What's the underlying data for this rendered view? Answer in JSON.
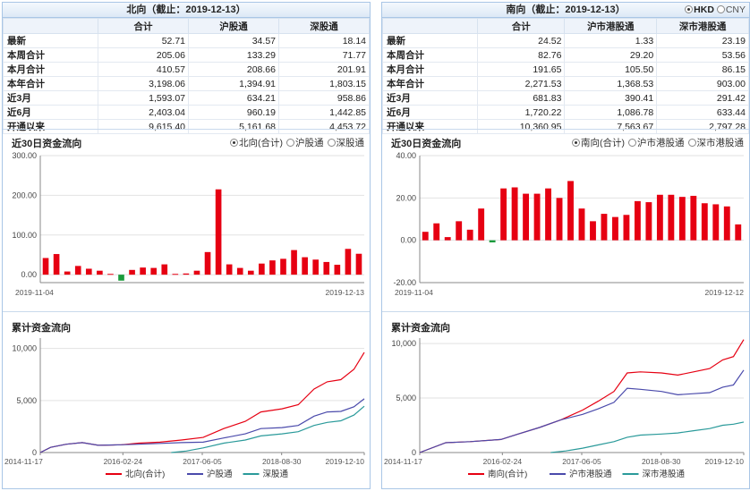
{
  "colors": {
    "red": "#e60012",
    "green": "#1a9b3c",
    "blue": "#4a4aab",
    "teal": "#2a9a9a",
    "grid": "#e2e2e2"
  },
  "left": {
    "title": "北向（截止：2019-12-13）",
    "columns": [
      "合计",
      "沪股通",
      "深股通"
    ],
    "rows": [
      {
        "label": "最新",
        "values": [
          "52.71",
          "34.57",
          "18.14"
        ]
      },
      {
        "label": "本周合计",
        "values": [
          "205.06",
          "133.29",
          "71.77"
        ]
      },
      {
        "label": "本月合计",
        "values": [
          "410.57",
          "208.66",
          "201.91"
        ]
      },
      {
        "label": "本年合计",
        "values": [
          "3,198.06",
          "1,394.91",
          "1,803.15"
        ]
      },
      {
        "label": "近3月",
        "values": [
          "1,593.07",
          "634.21",
          "958.86"
        ]
      },
      {
        "label": "近6月",
        "values": [
          "2,403.04",
          "960.19",
          "1,442.85"
        ]
      },
      {
        "label": "开通以来",
        "values": [
          "9,615.40",
          "5,161.68",
          "4,453.72"
        ]
      }
    ],
    "flow_title": "近30日资金流向",
    "flow_options": [
      "北向(合计)",
      "沪股通",
      "深股通"
    ],
    "flow_selected": 0,
    "cum_title": "累计资金流向"
  },
  "right": {
    "title": "南向（截止：2019-12-13）",
    "currency": [
      "HKD",
      "CNY"
    ],
    "currency_selected": 0,
    "columns": [
      "合计",
      "沪市港股通",
      "深市港股通"
    ],
    "rows": [
      {
        "label": "最新",
        "values": [
          "24.52",
          "1.33",
          "23.19"
        ]
      },
      {
        "label": "本周合计",
        "values": [
          "82.76",
          "29.20",
          "53.56"
        ]
      },
      {
        "label": "本月合计",
        "values": [
          "191.65",
          "105.50",
          "86.15"
        ]
      },
      {
        "label": "本年合计",
        "values": [
          "2,271.53",
          "1,368.53",
          "903.00"
        ]
      },
      {
        "label": "近3月",
        "values": [
          "681.83",
          "390.41",
          "291.42"
        ]
      },
      {
        "label": "近6月",
        "values": [
          "1,720.22",
          "1,086.78",
          "633.44"
        ]
      },
      {
        "label": "开通以来",
        "values": [
          "10,360.95",
          "7,563.67",
          "2,797.28"
        ]
      }
    ],
    "flow_title": "近30日资金流向",
    "flow_options": [
      "南向(合计)",
      "沪市港股通",
      "深市港股通"
    ],
    "flow_selected": 0,
    "cum_title": "累计资金流向"
  },
  "chart_data": [
    {
      "type": "bar",
      "title": "近30日资金流向",
      "series_name": "北向(合计)",
      "ylim": [
        -20,
        300
      ],
      "ytick_labels": [
        "300.00",
        "200.00",
        "100.00",
        "0.00"
      ],
      "yticks": [
        300,
        200,
        100,
        0
      ],
      "xtick_labels": [
        "2019-11-04",
        "2019-12-13"
      ],
      "values": [
        42,
        52,
        8,
        22,
        15,
        10,
        2,
        -15,
        12,
        18,
        17,
        26,
        2,
        3,
        10,
        57,
        215,
        26,
        17,
        10,
        28,
        36,
        40,
        62,
        44,
        38,
        32,
        25,
        65,
        52.71
      ],
      "grid": true
    },
    {
      "type": "line",
      "title": "累计资金流向",
      "ylim": [
        0,
        11000
      ],
      "ytick_labels": [
        "10,000",
        "5,000",
        "0"
      ],
      "yticks": [
        10000,
        5000,
        0
      ],
      "xlim": [
        "2014-11-17",
        "2019-12-13"
      ],
      "xtick_labels": [
        "2014-11-17",
        "2016-02-24",
        "2017-06-05",
        "2018-08-30",
        "2019-12-10"
      ],
      "series": [
        {
          "name": "北向(合计)",
          "color": "#e60012",
          "points": [
            [
              "2014-11-17",
              0
            ],
            [
              "2015-01-15",
              500
            ],
            [
              "2015-04-15",
              800
            ],
            [
              "2015-07-15",
              950
            ],
            [
              "2015-10-15",
              700
            ],
            [
              "2016-02-24",
              750
            ],
            [
              "2016-06-01",
              900
            ],
            [
              "2016-10-01",
              1000
            ],
            [
              "2017-02-01",
              1200
            ],
            [
              "2017-06-05",
              1450
            ],
            [
              "2017-10-01",
              2300
            ],
            [
              "2018-02-01",
              3000
            ],
            [
              "2018-05-01",
              3900
            ],
            [
              "2018-08-30",
              4200
            ],
            [
              "2018-12-01",
              4600
            ],
            [
              "2019-03-01",
              6100
            ],
            [
              "2019-05-15",
              6800
            ],
            [
              "2019-08-01",
              7000
            ],
            [
              "2019-10-15",
              8000
            ],
            [
              "2019-12-13",
              9615.4
            ]
          ]
        },
        {
          "name": "沪股通",
          "color": "#4a4aab",
          "points": [
            [
              "2014-11-17",
              0
            ],
            [
              "2015-01-15",
              500
            ],
            [
              "2015-04-15",
              800
            ],
            [
              "2015-07-15",
              950
            ],
            [
              "2015-10-15",
              700
            ],
            [
              "2016-02-24",
              750
            ],
            [
              "2016-06-01",
              800
            ],
            [
              "2016-10-01",
              880
            ],
            [
              "2017-02-01",
              950
            ],
            [
              "2017-06-05",
              1000
            ],
            [
              "2017-10-01",
              1400
            ],
            [
              "2018-02-01",
              1800
            ],
            [
              "2018-05-01",
              2300
            ],
            [
              "2018-08-30",
              2400
            ],
            [
              "2018-12-01",
              2600
            ],
            [
              "2019-03-01",
              3500
            ],
            [
              "2019-05-15",
              3900
            ],
            [
              "2019-08-01",
              3950
            ],
            [
              "2019-10-15",
              4400
            ],
            [
              "2019-12-13",
              5161.68
            ]
          ]
        },
        {
          "name": "深股通",
          "color": "#2a9a9a",
          "points": [
            [
              "2016-12-05",
              0
            ],
            [
              "2017-03-01",
              150
            ],
            [
              "2017-06-05",
              450
            ],
            [
              "2017-10-01",
              900
            ],
            [
              "2018-02-01",
              1200
            ],
            [
              "2018-05-01",
              1600
            ],
            [
              "2018-08-30",
              1800
            ],
            [
              "2018-12-01",
              2000
            ],
            [
              "2019-03-01",
              2600
            ],
            [
              "2019-05-15",
              2900
            ],
            [
              "2019-08-01",
              3050
            ],
            [
              "2019-10-15",
              3600
            ],
            [
              "2019-12-13",
              4453.72
            ]
          ]
        }
      ],
      "legend": "bottom",
      "grid": true
    },
    {
      "type": "bar",
      "title": "近30日资金流向",
      "series_name": "南向(合计)",
      "ylim": [
        -20,
        40
      ],
      "ytick_labels": [
        "40.00",
        "20.00",
        "0.00",
        "-20.00"
      ],
      "yticks": [
        40,
        20,
        0,
        -20
      ],
      "xtick_labels": [
        "2019-11-04",
        "2019-12-12"
      ],
      "values": [
        4,
        8,
        1.5,
        9,
        5,
        15,
        -1,
        24.5,
        25,
        22,
        22,
        24.5,
        20,
        28,
        15,
        9,
        12.5,
        11,
        12,
        18.5,
        18,
        21.5,
        21.5,
        20.5,
        21,
        17.5,
        17,
        16,
        7.5
      ],
      "grid": true
    },
    {
      "type": "line",
      "title": "累计资金流向",
      "ylim": [
        0,
        10500
      ],
      "ytick_labels": [
        "10,000",
        "5,000",
        "0"
      ],
      "yticks": [
        10000,
        5000,
        0
      ],
      "xlim": [
        "2014-11-17",
        "2019-12-13"
      ],
      "xtick_labels": [
        "2014-11-17",
        "2016-02-24",
        "2017-06-05",
        "2018-08-30",
        "2019-12-10"
      ],
      "series": [
        {
          "name": "南向(合计)",
          "color": "#e60012",
          "points": [
            [
              "2014-11-17",
              0
            ],
            [
              "2015-04-15",
              900
            ],
            [
              "2015-09-01",
              1000
            ],
            [
              "2016-02-24",
              1200
            ],
            [
              "2016-06-01",
              1700
            ],
            [
              "2016-10-01",
              2300
            ],
            [
              "2017-02-01",
              3000
            ],
            [
              "2017-06-05",
              3900
            ],
            [
              "2017-09-01",
              4700
            ],
            [
              "2017-12-01",
              5600
            ],
            [
              "2018-02-15",
              7300
            ],
            [
              "2018-05-01",
              7400
            ],
            [
              "2018-08-30",
              7300
            ],
            [
              "2018-12-01",
              7100
            ],
            [
              "2019-03-01",
              7400
            ],
            [
              "2019-06-01",
              7700
            ],
            [
              "2019-08-15",
              8500
            ],
            [
              "2019-10-15",
              8800
            ],
            [
              "2019-12-13",
              10360.95
            ]
          ]
        },
        {
          "name": "沪市港股通",
          "color": "#4a4aab",
          "points": [
            [
              "2014-11-17",
              0
            ],
            [
              "2015-04-15",
              900
            ],
            [
              "2015-09-01",
              1000
            ],
            [
              "2016-02-24",
              1200
            ],
            [
              "2016-06-01",
              1700
            ],
            [
              "2016-10-01",
              2300
            ],
            [
              "2017-02-01",
              3000
            ],
            [
              "2017-06-05",
              3500
            ],
            [
              "2017-09-01",
              4000
            ],
            [
              "2017-12-01",
              4600
            ],
            [
              "2018-02-15",
              5900
            ],
            [
              "2018-05-01",
              5800
            ],
            [
              "2018-08-30",
              5600
            ],
            [
              "2018-12-01",
              5300
            ],
            [
              "2019-03-01",
              5400
            ],
            [
              "2019-06-01",
              5500
            ],
            [
              "2019-08-15",
              6000
            ],
            [
              "2019-10-15",
              6200
            ],
            [
              "2019-12-13",
              7563.67
            ]
          ]
        },
        {
          "name": "深市港股通",
          "color": "#2a9a9a",
          "points": [
            [
              "2016-12-05",
              0
            ],
            [
              "2017-03-01",
              150
            ],
            [
              "2017-06-05",
              400
            ],
            [
              "2017-09-01",
              700
            ],
            [
              "2017-12-01",
              1000
            ],
            [
              "2018-02-15",
              1400
            ],
            [
              "2018-05-01",
              1600
            ],
            [
              "2018-08-30",
              1700
            ],
            [
              "2018-12-01",
              1800
            ],
            [
              "2019-03-01",
              2000
            ],
            [
              "2019-06-01",
              2200
            ],
            [
              "2019-08-15",
              2500
            ],
            [
              "2019-10-15",
              2600
            ],
            [
              "2019-12-13",
              2797.28
            ]
          ]
        }
      ],
      "legend": "bottom",
      "grid": true
    }
  ]
}
